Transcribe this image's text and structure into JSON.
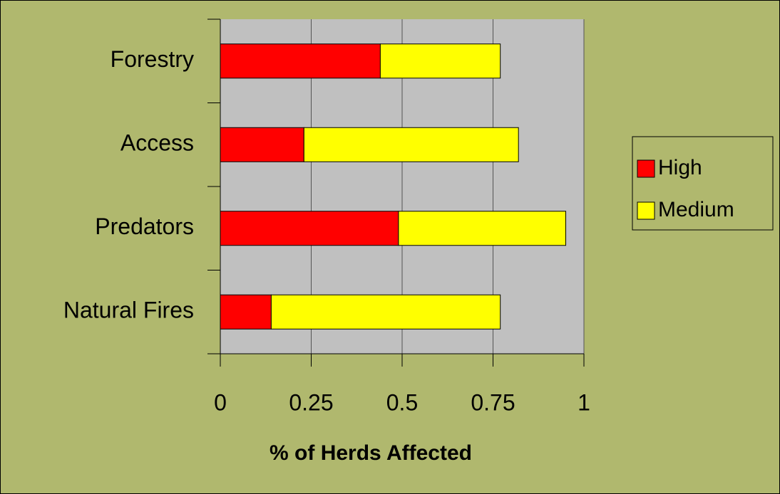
{
  "chart_data": {
    "type": "stacked-barh",
    "xlabel": "% of Herds Affected",
    "categories": [
      "Forestry",
      "Access",
      "Predators",
      "Natural Fires"
    ],
    "series": [
      {
        "name": "High",
        "color": "#ff0000",
        "values": [
          0.44,
          0.23,
          0.49,
          0.14
        ]
      },
      {
        "name": "Medium",
        "color": "#ffff00",
        "values": [
          0.33,
          0.59,
          0.46,
          0.63
        ]
      }
    ],
    "xlim": [
      0,
      1
    ],
    "xticks": [
      0,
      0.25,
      0.5,
      0.75,
      1
    ],
    "grid": true,
    "legend": "right",
    "background": "#b0b86e",
    "plot_background": "#c0c0c0"
  }
}
